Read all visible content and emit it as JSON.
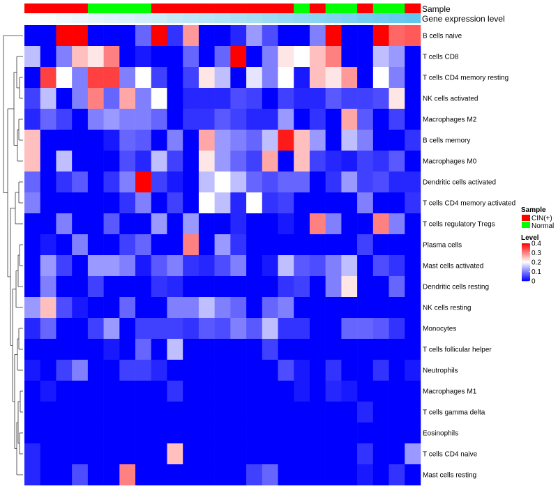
{
  "chart_data": {
    "type": "heatmap",
    "title": "",
    "annotation_labels": {
      "sample": "Sample",
      "gene_expression": "Gene expression level"
    },
    "rows": [
      "B cells naive",
      "T cells CD8",
      "T cells CD4 memory resting",
      "NK cells activated",
      "Macrophages M2",
      "B cells memory",
      "Macrophages M0",
      "Dendritic cells activated",
      "T cells CD4 memory activated",
      "T cells regulatory  Tregs",
      "Plasma cells",
      "Mast cells activated",
      "Dendritic cells resting",
      "NK cells resting",
      "Monocytes",
      "T cells follicular helper",
      "Neutrophils",
      "Macrophages M1",
      "T cells gamma delta",
      "Eosinophils",
      "T cells CD4 naive",
      "Mast cells resting"
    ],
    "sample_groups": [
      "CIN(+)",
      "CIN(+)",
      "CIN(+)",
      "CIN(+)",
      "Normal",
      "Normal",
      "Normal",
      "Normal",
      "CIN(+)",
      "CIN(+)",
      "CIN(+)",
      "CIN(+)",
      "CIN(+)",
      "CIN(+)",
      "CIN(+)",
      "CIN(+)",
      "CIN(+)",
      "Normal",
      "CIN(+)",
      "Normal",
      "Normal",
      "CIN(+)",
      "Normal",
      "Normal",
      "CIN(+)"
    ],
    "gene_expression_level": [
      0,
      0.04,
      0.08,
      0.12,
      0.17,
      0.21,
      0.25,
      0.29,
      0.33,
      0.38,
      0.42,
      0.46,
      0.5,
      0.54,
      0.58,
      0.63,
      0.67,
      0.71,
      0.75,
      0.79,
      0.83,
      0.88,
      0.92,
      0.96,
      1
    ],
    "values": [
      [
        0,
        0,
        0.4,
        0.4,
        0,
        0,
        0,
        0.08,
        0.4,
        0.04,
        0.28,
        0,
        0,
        0.03,
        0.12,
        0.06,
        0,
        0,
        0.1,
        0.4,
        0,
        0,
        0.4,
        0.32,
        0.33
      ],
      [
        0.15,
        0,
        0.1,
        0.25,
        0.22,
        0.3,
        0,
        0.02,
        0,
        0,
        0.08,
        0,
        0.08,
        0.4,
        0,
        0.1,
        0.22,
        0.2,
        0.25,
        0.3,
        0,
        0,
        0.15,
        0.12,
        0
      ],
      [
        0,
        0.35,
        0.2,
        0.1,
        0.35,
        0.35,
        0.1,
        0.2,
        0.05,
        0,
        0.05,
        0.22,
        0.15,
        0,
        0.18,
        0.1,
        0.2,
        0.02,
        0.25,
        0.22,
        0.28,
        0,
        0.2,
        0.1,
        0
      ],
      [
        0.05,
        0.15,
        0,
        0.1,
        0.3,
        0.08,
        0.27,
        0.1,
        0.2,
        0,
        0.03,
        0.03,
        0.03,
        0.06,
        0.05,
        0,
        0.05,
        0.03,
        0.03,
        0.07,
        0.05,
        0.05,
        0.06,
        0.22,
        0
      ],
      [
        0.03,
        0.08,
        0.05,
        0,
        0.1,
        0.12,
        0.1,
        0.1,
        0.08,
        0,
        0.04,
        0.04,
        0.07,
        0.05,
        0.03,
        0.03,
        0.12,
        0,
        0.04,
        0,
        0.27,
        0.07,
        0,
        0.05,
        0
      ],
      [
        0.25,
        0,
        0,
        0,
        0,
        0.02,
        0.08,
        0.07,
        0,
        0.1,
        0,
        0.27,
        0.12,
        0.1,
        0.08,
        0.15,
        0.38,
        0.25,
        0.12,
        0,
        0.15,
        0.1,
        0,
        0,
        0.04
      ],
      [
        0.25,
        0,
        0.15,
        0,
        0,
        0,
        0.06,
        0.03,
        0.15,
        0.05,
        0,
        0.22,
        0.12,
        0.08,
        0.05,
        0.27,
        0,
        0.25,
        0.05,
        0.03,
        0.02,
        0.05,
        0.04,
        0.07,
        0
      ],
      [
        0.08,
        0,
        0.04,
        0.07,
        0,
        0.04,
        0.1,
        0.4,
        0.05,
        0.02,
        0,
        0.15,
        0.2,
        0.15,
        0.08,
        0.06,
        0.08,
        0.08,
        0,
        0.04,
        0.12,
        0.05,
        0.06,
        0.03,
        0.03
      ],
      [
        0.1,
        0,
        0,
        0,
        0,
        0,
        0.04,
        0.1,
        0,
        0.05,
        0,
        0.2,
        0.15,
        0.03,
        0.2,
        0.04,
        0.05,
        0,
        0,
        0,
        0,
        0.1,
        0,
        0,
        0.04
      ],
      [
        0,
        0,
        0.1,
        0,
        0,
        0.07,
        0,
        0,
        0.12,
        0,
        0.12,
        0,
        0,
        0.03,
        0,
        0,
        0.02,
        0,
        0.3,
        0.1,
        0,
        0,
        0.3,
        0.1,
        0
      ],
      [
        0,
        0.02,
        0,
        0.1,
        0,
        0,
        0.05,
        0.08,
        0,
        0,
        0.3,
        0,
        0.12,
        0.04,
        0,
        0,
        0,
        0,
        0,
        0,
        0,
        0.05,
        0,
        0,
        0
      ],
      [
        0,
        0.12,
        0.05,
        0,
        0.12,
        0.12,
        0.1,
        0.02,
        0.07,
        0.1,
        0.04,
        0.03,
        0.06,
        0.1,
        0,
        0.02,
        0.15,
        0.07,
        0.06,
        0.1,
        0.15,
        0,
        0.06,
        0.04,
        0
      ],
      [
        0,
        0.1,
        0,
        0,
        0.05,
        0,
        0,
        0,
        0.04,
        0.03,
        0,
        0,
        0,
        0,
        0,
        0,
        0.04,
        0.05,
        0,
        0.1,
        0.22,
        0,
        0,
        0.08,
        0
      ],
      [
        0.12,
        0.25,
        0.06,
        0.02,
        0,
        0,
        0.08,
        0,
        0,
        0.1,
        0.1,
        0.15,
        0.1,
        0.08,
        0,
        0.08,
        0.1,
        0,
        0,
        0,
        0,
        0,
        0,
        0,
        0
      ],
      [
        0.03,
        0.08,
        0,
        0,
        0.05,
        0.12,
        0,
        0.05,
        0.05,
        0.05,
        0.04,
        0.07,
        0.06,
        0.1,
        0.07,
        0.15,
        0.04,
        0.04,
        0,
        0,
        0.08,
        0.08,
        0.07,
        0.04,
        0
      ],
      [
        0,
        0,
        0,
        0,
        0,
        0.02,
        0,
        0.08,
        0,
        0.15,
        0,
        0,
        0,
        0,
        0,
        0.05,
        0,
        0,
        0,
        0,
        0,
        0,
        0,
        0,
        0
      ],
      [
        0.02,
        0,
        0.05,
        0.1,
        0,
        0,
        0.05,
        0.05,
        0.03,
        0,
        0,
        0,
        0,
        0,
        0,
        0,
        0.06,
        0.02,
        0,
        0.04,
        0,
        0,
        0.04,
        0,
        0.02
      ],
      [
        0,
        0.02,
        0,
        0,
        0,
        0,
        0,
        0,
        0,
        0.04,
        0,
        0,
        0,
        0,
        0,
        0,
        0,
        0.02,
        0,
        0.03,
        0.02,
        0,
        0,
        0,
        0
      ],
      [
        0,
        0,
        0,
        0,
        0,
        0,
        0,
        0,
        0,
        0,
        0,
        0,
        0,
        0,
        0,
        0,
        0,
        0,
        0,
        0,
        0,
        0.03,
        0,
        0,
        0
      ],
      [
        0,
        0,
        0,
        0,
        0,
        0,
        0,
        0,
        0,
        0,
        0,
        0,
        0,
        0,
        0,
        0,
        0,
        0,
        0,
        0,
        0,
        0,
        0,
        0,
        0
      ],
      [
        0.03,
        0,
        0,
        0,
        0,
        0,
        0,
        0,
        0,
        0.25,
        0,
        0,
        0,
        0,
        0,
        0,
        0,
        0,
        0,
        0,
        0,
        0.04,
        0,
        0,
        0.12
      ],
      [
        0.03,
        0,
        0,
        0.06,
        0,
        0,
        0.3,
        0,
        0,
        0,
        0,
        0,
        0,
        0,
        0.05,
        0.08,
        0,
        0,
        0,
        0,
        0,
        0.02,
        0,
        0.04,
        0
      ]
    ],
    "value_range": [
      0,
      0.4
    ],
    "legend": {
      "sample_title": "Sample",
      "sample_entries": [
        "CIN(+)",
        "Normal"
      ],
      "level_title": "Level",
      "level_ticks": [
        0.4,
        0.3,
        0.2,
        0.1,
        0
      ],
      "level_tick_labels": [
        "0.4",
        "0.3",
        "0.2",
        "0.1",
        "0"
      ],
      "placement": "right"
    },
    "colors": {
      "CIN(+)": "#ff0000",
      "Normal": "#00ff00",
      "low": "#0000ff",
      "mid": "#ffffff",
      "high": "#ff0000",
      "mid_value": 0.2,
      "gene_expression_low": "#ffffff",
      "gene_expression_high": "#62c6ee",
      "border": "#ffffff"
    },
    "row_dendrogram": true
  }
}
